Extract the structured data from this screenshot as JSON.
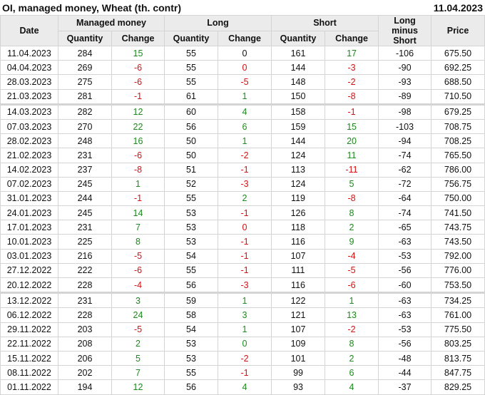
{
  "header": {
    "title": "OI, managed money, Wheat (th. contr)",
    "date": "11.04.2023"
  },
  "colors": {
    "g": "#1a8a1a",
    "r": "#d41010",
    "k": "#111111"
  },
  "columns": {
    "date": "Date",
    "managed_money": "Managed money",
    "long": "Long",
    "short": "Short",
    "long_minus_short": "Long minus Short",
    "price": "Price",
    "quantity": "Quantity",
    "change": "Change"
  },
  "rows": [
    {
      "date": "11.04.2023",
      "mm_q": "284",
      "mm_c": "15",
      "mm_cc": "g",
      "l_q": "55",
      "l_c": "0",
      "l_cc": "k",
      "s_q": "161",
      "s_c": "17",
      "s_cc": "g",
      "lms": "-106",
      "price": "675.50"
    },
    {
      "date": "04.04.2023",
      "mm_q": "269",
      "mm_c": "-6",
      "mm_cc": "r",
      "l_q": "55",
      "l_c": "0",
      "l_cc": "r",
      "s_q": "144",
      "s_c": "-3",
      "s_cc": "r",
      "lms": "-90",
      "price": "692.25"
    },
    {
      "date": "28.03.2023",
      "mm_q": "275",
      "mm_c": "-6",
      "mm_cc": "r",
      "l_q": "55",
      "l_c": "-5",
      "l_cc": "r",
      "s_q": "148",
      "s_c": "-2",
      "s_cc": "r",
      "lms": "-93",
      "price": "688.50"
    },
    {
      "date": "21.03.2023",
      "mm_q": "281",
      "mm_c": "-1",
      "mm_cc": "r",
      "l_q": "61",
      "l_c": "1",
      "l_cc": "g",
      "s_q": "150",
      "s_c": "-8",
      "s_cc": "r",
      "lms": "-89",
      "price": "710.50",
      "sep": true
    },
    {
      "date": "14.03.2023",
      "mm_q": "282",
      "mm_c": "12",
      "mm_cc": "g",
      "l_q": "60",
      "l_c": "4",
      "l_cc": "g",
      "s_q": "158",
      "s_c": "-1",
      "s_cc": "r",
      "lms": "-98",
      "price": "679.25"
    },
    {
      "date": "07.03.2023",
      "mm_q": "270",
      "mm_c": "22",
      "mm_cc": "g",
      "l_q": "56",
      "l_c": "6",
      "l_cc": "g",
      "s_q": "159",
      "s_c": "15",
      "s_cc": "g",
      "lms": "-103",
      "price": "708.75"
    },
    {
      "date": "28.02.2023",
      "mm_q": "248",
      "mm_c": "16",
      "mm_cc": "g",
      "l_q": "50",
      "l_c": "1",
      "l_cc": "g",
      "s_q": "144",
      "s_c": "20",
      "s_cc": "g",
      "lms": "-94",
      "price": "708.25"
    },
    {
      "date": "21.02.2023",
      "mm_q": "231",
      "mm_c": "-6",
      "mm_cc": "r",
      "l_q": "50",
      "l_c": "-2",
      "l_cc": "r",
      "s_q": "124",
      "s_c": "11",
      "s_cc": "g",
      "lms": "-74",
      "price": "765.50"
    },
    {
      "date": "14.02.2023",
      "mm_q": "237",
      "mm_c": "-8",
      "mm_cc": "r",
      "l_q": "51",
      "l_c": "-1",
      "l_cc": "r",
      "s_q": "113",
      "s_c": "-11",
      "s_cc": "r",
      "lms": "-62",
      "price": "786.00"
    },
    {
      "date": "07.02.2023",
      "mm_q": "245",
      "mm_c": "1",
      "mm_cc": "g",
      "l_q": "52",
      "l_c": "-3",
      "l_cc": "r",
      "s_q": "124",
      "s_c": "5",
      "s_cc": "g",
      "lms": "-72",
      "price": "756.75"
    },
    {
      "date": "31.01.2023",
      "mm_q": "244",
      "mm_c": "-1",
      "mm_cc": "r",
      "l_q": "55",
      "l_c": "2",
      "l_cc": "g",
      "s_q": "119",
      "s_c": "-8",
      "s_cc": "r",
      "lms": "-64",
      "price": "750.00"
    },
    {
      "date": "24.01.2023",
      "mm_q": "245",
      "mm_c": "14",
      "mm_cc": "g",
      "l_q": "53",
      "l_c": "-1",
      "l_cc": "r",
      "s_q": "126",
      "s_c": "8",
      "s_cc": "g",
      "lms": "-74",
      "price": "741.50"
    },
    {
      "date": "17.01.2023",
      "mm_q": "231",
      "mm_c": "7",
      "mm_cc": "g",
      "l_q": "53",
      "l_c": "0",
      "l_cc": "r",
      "s_q": "118",
      "s_c": "2",
      "s_cc": "g",
      "lms": "-65",
      "price": "743.75"
    },
    {
      "date": "10.01.2023",
      "mm_q": "225",
      "mm_c": "8",
      "mm_cc": "g",
      "l_q": "53",
      "l_c": "-1",
      "l_cc": "r",
      "s_q": "116",
      "s_c": "9",
      "s_cc": "g",
      "lms": "-63",
      "price": "743.50"
    },
    {
      "date": "03.01.2023",
      "mm_q": "216",
      "mm_c": "-5",
      "mm_cc": "r",
      "l_q": "54",
      "l_c": "-1",
      "l_cc": "r",
      "s_q": "107",
      "s_c": "-4",
      "s_cc": "r",
      "lms": "-53",
      "price": "792.00"
    },
    {
      "date": "27.12.2022",
      "mm_q": "222",
      "mm_c": "-6",
      "mm_cc": "r",
      "l_q": "55",
      "l_c": "-1",
      "l_cc": "r",
      "s_q": "111",
      "s_c": "-5",
      "s_cc": "r",
      "lms": "-56",
      "price": "776.00"
    },
    {
      "date": "20.12.2022",
      "mm_q": "228",
      "mm_c": "-4",
      "mm_cc": "r",
      "l_q": "56",
      "l_c": "-3",
      "l_cc": "r",
      "s_q": "116",
      "s_c": "-6",
      "s_cc": "r",
      "lms": "-60",
      "price": "753.50",
      "sep": true
    },
    {
      "date": "13.12.2022",
      "mm_q": "231",
      "mm_c": "3",
      "mm_cc": "g",
      "l_q": "59",
      "l_c": "1",
      "l_cc": "g",
      "s_q": "122",
      "s_c": "1",
      "s_cc": "g",
      "lms": "-63",
      "price": "734.25"
    },
    {
      "date": "06.12.2022",
      "mm_q": "228",
      "mm_c": "24",
      "mm_cc": "g",
      "l_q": "58",
      "l_c": "3",
      "l_cc": "g",
      "s_q": "121",
      "s_c": "13",
      "s_cc": "g",
      "lms": "-63",
      "price": "761.00"
    },
    {
      "date": "29.11.2022",
      "mm_q": "203",
      "mm_c": "-5",
      "mm_cc": "r",
      "l_q": "54",
      "l_c": "1",
      "l_cc": "g",
      "s_q": "107",
      "s_c": "-2",
      "s_cc": "r",
      "lms": "-53",
      "price": "775.50"
    },
    {
      "date": "22.11.2022",
      "mm_q": "208",
      "mm_c": "2",
      "mm_cc": "g",
      "l_q": "53",
      "l_c": "0",
      "l_cc": "g",
      "s_q": "109",
      "s_c": "8",
      "s_cc": "g",
      "lms": "-56",
      "price": "803.25"
    },
    {
      "date": "15.11.2022",
      "mm_q": "206",
      "mm_c": "5",
      "mm_cc": "g",
      "l_q": "53",
      "l_c": "-2",
      "l_cc": "r",
      "s_q": "101",
      "s_c": "2",
      "s_cc": "g",
      "lms": "-48",
      "price": "813.75"
    },
    {
      "date": "08.11.2022",
      "mm_q": "202",
      "mm_c": "7",
      "mm_cc": "g",
      "l_q": "55",
      "l_c": "-1",
      "l_cc": "r",
      "s_q": "99",
      "s_c": "6",
      "s_cc": "g",
      "lms": "-44",
      "price": "847.75"
    },
    {
      "date": "01.11.2022",
      "mm_q": "194",
      "mm_c": "12",
      "mm_cc": "g",
      "l_q": "56",
      "l_c": "4",
      "l_cc": "g",
      "s_q": "93",
      "s_c": "4",
      "s_cc": "g",
      "lms": "-37",
      "price": "829.25"
    }
  ]
}
